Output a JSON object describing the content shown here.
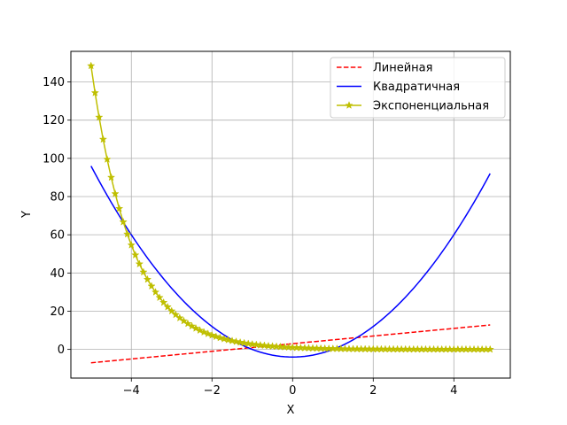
{
  "chart_data": {
    "type": "line",
    "xlabel": "X",
    "ylabel": "Y",
    "xlim": [
      -5.5,
      5.4
    ],
    "ylim": [
      -15,
      156
    ],
    "xticks": [
      -4,
      -2,
      0,
      2,
      4
    ],
    "xtick_labels": [
      "−4",
      "−2",
      "0",
      "2",
      "4"
    ],
    "yticks": [
      0,
      20,
      40,
      60,
      80,
      100,
      120,
      140
    ],
    "ytick_labels": [
      "0",
      "20",
      "40",
      "60",
      "80",
      "100",
      "120",
      "140"
    ],
    "grid": true,
    "legend_position": "top-right",
    "x_range": [
      -5,
      4.9
    ],
    "x_step": 0.1,
    "series": [
      {
        "name": "Линейная",
        "formula": "2x + 3",
        "color": "#ff0000",
        "linestyle": "dashed",
        "marker": "none"
      },
      {
        "name": "Квадратичная",
        "formula": "4x^2 - 4",
        "color": "#0000ff",
        "linestyle": "solid",
        "marker": "none"
      },
      {
        "name": "Экспоненциальная",
        "formula": "exp(-x)",
        "color": "#bfbf00",
        "linestyle": "solid",
        "marker": "star"
      }
    ]
  }
}
